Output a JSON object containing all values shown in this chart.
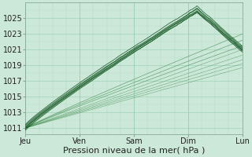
{
  "bg_color": "#cce8d8",
  "grid_color_major": "#99ccb3",
  "grid_color_minor": "#b3d9c6",
  "line_color_dark": "#1a5c28",
  "line_color_thin": "#3a8a4a",
  "xlabel": "Pression niveau de la mer( hPa )",
  "xlabel_fontsize": 8,
  "xtick_labels": [
    "Jeu",
    "Ven",
    "Sam",
    "Dim",
    "Lun"
  ],
  "ytick_values": [
    1011,
    1013,
    1015,
    1017,
    1019,
    1021,
    1023,
    1025
  ],
  "ylim": [
    1010.2,
    1027.0
  ],
  "xlim": [
    0,
    96
  ],
  "day_positions": [
    0,
    24,
    48,
    72,
    96
  ],
  "tick_fontsize": 7,
  "spine_color": "#88aa99"
}
